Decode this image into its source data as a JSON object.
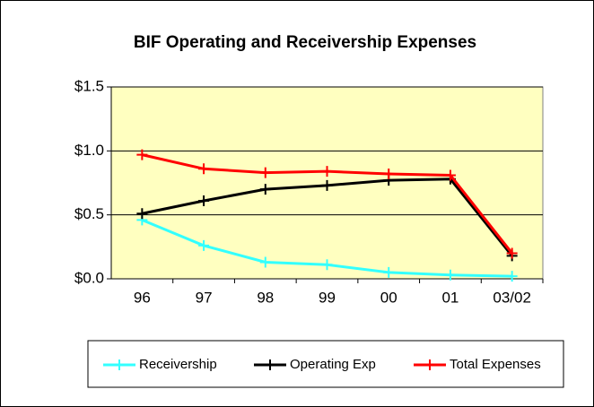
{
  "chart_data": {
    "type": "line",
    "title": "BIF Operating and Receivership Expenses",
    "categories": [
      "96",
      "97",
      "98",
      "99",
      "00",
      "01",
      "03/02"
    ],
    "series": [
      {
        "name": "Receivership",
        "color": "#33ffff",
        "values": [
          0.46,
          0.26,
          0.13,
          0.11,
          0.05,
          0.03,
          0.02
        ]
      },
      {
        "name": "Operating Exp",
        "color": "#000000",
        "values": [
          0.51,
          0.61,
          0.7,
          0.73,
          0.77,
          0.78,
          0.18
        ]
      },
      {
        "name": "Total Expenses",
        "color": "#ff0000",
        "values": [
          0.97,
          0.86,
          0.83,
          0.84,
          0.82,
          0.81,
          0.2
        ]
      }
    ],
    "ylim": [
      0,
      1.5
    ],
    "yticks": [
      {
        "value": 0,
        "label": "$0.0"
      },
      {
        "value": 0.5,
        "label": "$0.5"
      },
      {
        "value": 1,
        "label": "$1.0"
      },
      {
        "value": 1.5,
        "label": "$1.5"
      }
    ],
    "grid": true,
    "legend": "bottom",
    "plot_background": "#ffffc0"
  }
}
